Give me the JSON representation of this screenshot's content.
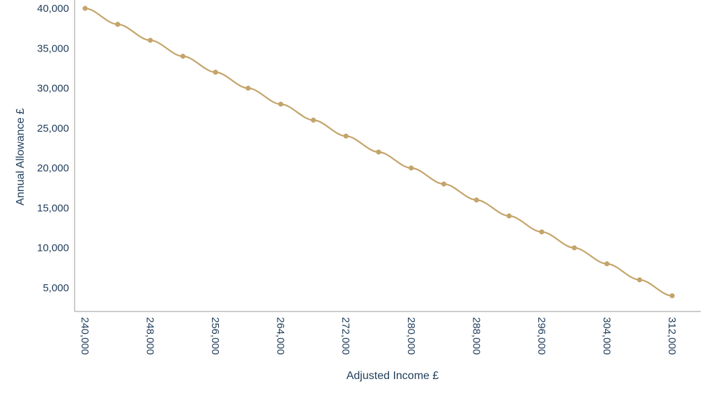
{
  "chart_data": {
    "type": "line",
    "title": "",
    "xlabel": "Adjusted Income £",
    "ylabel": "Annual Allowance £",
    "x": [
      240000,
      244000,
      248000,
      252000,
      256000,
      260000,
      264000,
      268000,
      272000,
      276000,
      280000,
      284000,
      288000,
      292000,
      296000,
      300000,
      304000,
      308000,
      312000
    ],
    "series": [
      {
        "values": [
          40000,
          38000,
          36000,
          34000,
          32000,
          30000,
          28000,
          26000,
          24000,
          22000,
          20000,
          18000,
          16000,
          14000,
          12000,
          10000,
          8000,
          6000,
          4000
        ]
      }
    ],
    "x_ticks": [
      240000,
      248000,
      256000,
      264000,
      272000,
      280000,
      288000,
      296000,
      304000,
      312000
    ],
    "x_tick_labels": [
      "240,000",
      "248,000",
      "256,000",
      "264,000",
      "272,000",
      "280,000",
      "288,000",
      "296,000",
      "304,000",
      "312,000"
    ],
    "y_ticks": [
      5000,
      10000,
      15000,
      20000,
      25000,
      30000,
      35000,
      40000
    ],
    "y_tick_labels": [
      "5,000",
      "10,000",
      "15,000",
      "20,000",
      "25,000",
      "30,000",
      "35,000",
      "40,000"
    ],
    "xlim": [
      240000,
      315000
    ],
    "ylim": [
      2000,
      40000
    ],
    "grid": false,
    "legend": "none",
    "colors": {
      "series": "#c4a46a",
      "text": "#1f3c5a",
      "axis": "#9a9a9a"
    }
  }
}
